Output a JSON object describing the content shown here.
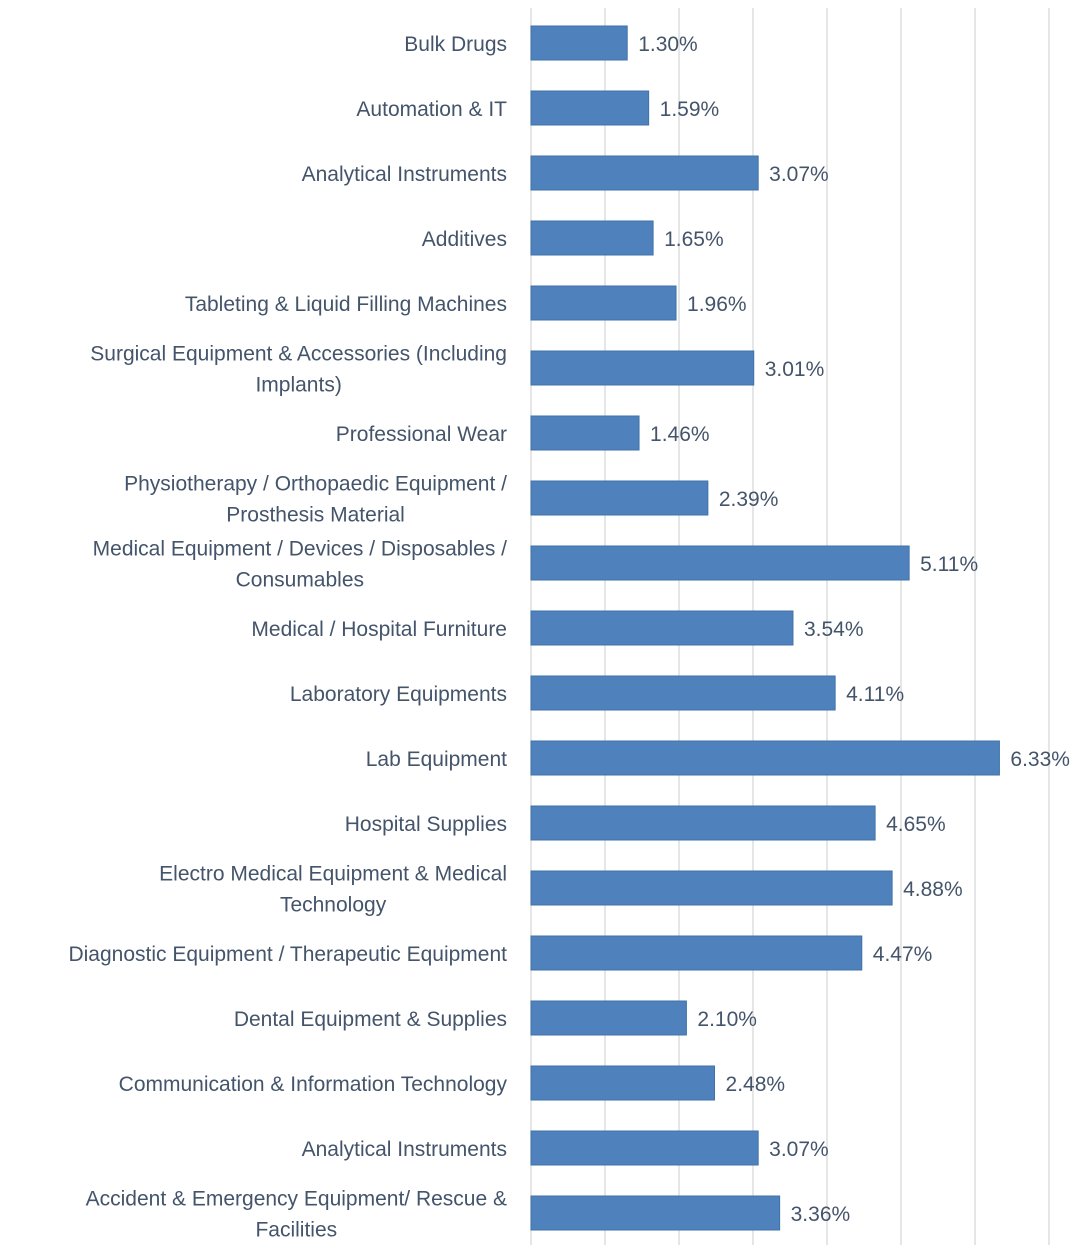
{
  "chart_data": {
    "type": "bar",
    "orientation": "horizontal",
    "title": "",
    "xlabel": "",
    "ylabel": "",
    "xlim": [
      0,
      7
    ],
    "grid": true,
    "bar_color": "#4f81bd",
    "grid_color": "#d9d9d9",
    "text_color": "#44546a",
    "categories": [
      "Bulk Drugs",
      "Automation & IT",
      "Analytical Instruments",
      "Additives",
      "Tableting & Liquid Filling Machines",
      "Surgical Equipment & Accessories (Including Implants)",
      "Professional Wear",
      "Physiotherapy / Orthopaedic Equipment / Prosthesis Material",
      "Medical Equipment / Devices / Disposables / Consumables",
      "Medical / Hospital Furniture",
      "Laboratory Equipments",
      "Lab Equipment",
      "Hospital Supplies",
      "Electro Medical Equipment & Medical Technology",
      "Diagnostic Equipment / Therapeutic Equipment",
      "Dental Equipment & Supplies",
      "Communication & Information Technology",
      "Analytical Instruments",
      "Accident & Emergency Equipment/ Rescue & Facilities"
    ],
    "label_lines": [
      [
        "Bulk Drugs"
      ],
      [
        "Automation & IT"
      ],
      [
        "Analytical Instruments"
      ],
      [
        "Additives"
      ],
      [
        "Tableting & Liquid Filling Machines"
      ],
      [
        "Surgical Equipment & Accessories (Including",
        "Implants)"
      ],
      [
        "Professional Wear"
      ],
      [
        "Physiotherapy / Orthopaedic Equipment /",
        "Prosthesis Material"
      ],
      [
        "Medical Equipment / Devices / Disposables /",
        "Consumables"
      ],
      [
        "Medical / Hospital Furniture"
      ],
      [
        "Laboratory Equipments"
      ],
      [
        "Lab Equipment"
      ],
      [
        "Hospital Supplies"
      ],
      [
        "Electro Medical Equipment & Medical",
        "Technology"
      ],
      [
        "Diagnostic Equipment / Therapeutic Equipment"
      ],
      [
        "Dental Equipment & Supplies"
      ],
      [
        "Communication & Information Technology"
      ],
      [
        "Analytical Instruments"
      ],
      [
        "Accident & Emergency Equipment/ Rescue &",
        "Facilities"
      ]
    ],
    "values": [
      1.3,
      1.59,
      3.07,
      1.65,
      1.96,
      3.01,
      1.46,
      2.39,
      5.11,
      3.54,
      4.11,
      6.33,
      4.65,
      4.88,
      4.47,
      2.1,
      2.48,
      3.07,
      3.36
    ],
    "value_labels": [
      "1.30%",
      "1.59%",
      "3.07%",
      "1.65%",
      "1.96%",
      "3.01%",
      "1.46%",
      "2.39%",
      "5.11%",
      "3.54%",
      "4.11%",
      "6.33%",
      "4.65%",
      "4.88%",
      "4.47%",
      "2.10%",
      "2.48%",
      "3.07%",
      "3.36%"
    ]
  }
}
